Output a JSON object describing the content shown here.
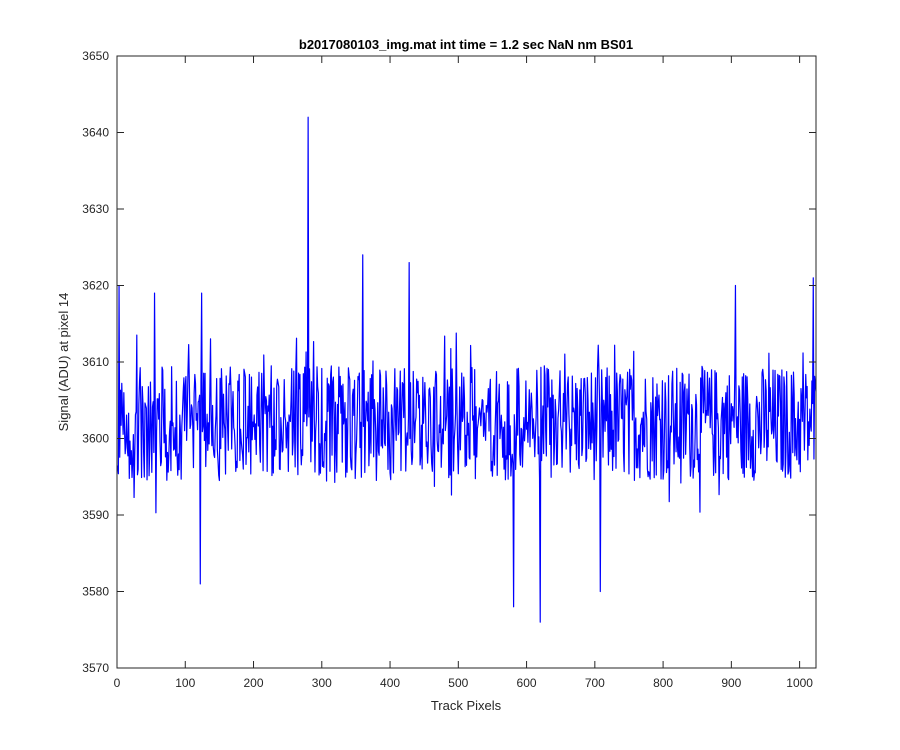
{
  "chart_data": {
    "type": "line",
    "title": "b2017080103_img.mat int time = 1.2 sec  NaN nm BS01",
    "xlabel": "Track Pixels",
    "ylabel": "Signal (ADU) at pixel 14",
    "xlim": [
      0,
      1024
    ],
    "ylim": [
      3570,
      3650
    ],
    "xticks": [
      "0",
      "100",
      "200",
      "300",
      "400",
      "500",
      "600",
      "700",
      "800",
      "900",
      "1000"
    ],
    "yticks": [
      "3570",
      "3580",
      "3590",
      "3600",
      "3610",
      "3620",
      "3630",
      "3640",
      "3650"
    ],
    "grid": false,
    "box": true,
    "series": [
      {
        "color": "#0000ff",
        "x_start": 1,
        "x_step": 1,
        "baseline": 3602,
        "approx_samples": 1024,
        "estimated_features": [
          {
            "x": 3,
            "y": 3620
          },
          {
            "x": 55,
            "y": 3619
          },
          {
            "x": 122,
            "y": 3581
          },
          {
            "x": 124,
            "y": 3619
          },
          {
            "x": 280,
            "y": 3642
          },
          {
            "x": 360,
            "y": 3624
          },
          {
            "x": 428,
            "y": 3623
          },
          {
            "x": 581,
            "y": 3578
          },
          {
            "x": 620,
            "y": 3576
          },
          {
            "x": 708,
            "y": 3580
          },
          {
            "x": 906,
            "y": 3620
          },
          {
            "x": 1020,
            "y": 3621
          }
        ]
      }
    ]
  }
}
